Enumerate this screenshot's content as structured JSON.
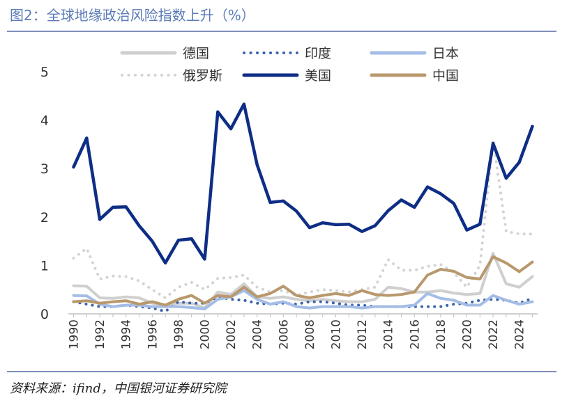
{
  "header": {
    "title": "图2：全球地缘政治风险指数上升（%）"
  },
  "footer": {
    "source": "资料来源：ifind，中国银河证券研究院"
  },
  "chart_data": {
    "type": "line",
    "title": "全球地缘政治风险指数上升（%）",
    "xlabel": "",
    "ylabel": "",
    "ylim": [
      0,
      5
    ],
    "yticks": [
      "0",
      "1",
      "2",
      "3",
      "4",
      "5"
    ],
    "x": [
      1990,
      1991,
      1992,
      1993,
      1994,
      1995,
      1996,
      1997,
      1998,
      1999,
      2000,
      2001,
      2002,
      2003,
      2004,
      2005,
      2006,
      2007,
      2008,
      2009,
      2010,
      2011,
      2012,
      2013,
      2014,
      2015,
      2016,
      2017,
      2018,
      2019,
      2020,
      2021,
      2022,
      2023,
      2024,
      2025
    ],
    "xtick_labels": [
      "1990",
      "1992",
      "1994",
      "1996",
      "1998",
      "2000",
      "2002",
      "2004",
      "2006",
      "2008",
      "2010",
      "2012",
      "2014",
      "2016",
      "2018",
      "2020",
      "2022",
      "2024"
    ],
    "series": [
      {
        "name": "德国",
        "color": "#cfcfcf",
        "style": "solid",
        "values": [
          0.58,
          0.57,
          0.33,
          0.32,
          0.35,
          0.33,
          0.22,
          0.18,
          0.22,
          0.22,
          0.12,
          0.45,
          0.4,
          0.62,
          0.35,
          0.32,
          0.35,
          0.3,
          0.27,
          0.3,
          0.27,
          0.25,
          0.25,
          0.3,
          0.55,
          0.52,
          0.45,
          0.45,
          0.48,
          0.43,
          0.4,
          0.42,
          1.25,
          0.62,
          0.55,
          0.77
        ]
      },
      {
        "name": "印度",
        "color": "#3b63ad",
        "style": "dotted",
        "values": [
          0.25,
          0.2,
          0.15,
          0.15,
          0.18,
          0.15,
          0.12,
          0.05,
          0.25,
          0.22,
          0.22,
          0.35,
          0.3,
          0.28,
          0.22,
          0.2,
          0.22,
          0.2,
          0.25,
          0.25,
          0.22,
          0.18,
          0.18,
          0.15,
          0.15,
          0.15,
          0.15,
          0.15,
          0.15,
          0.2,
          0.22,
          0.28,
          0.3,
          0.28,
          0.22,
          0.32
        ]
      },
      {
        "name": "日本",
        "color": "#a4bde6",
        "style": "solid",
        "values": [
          0.38,
          0.37,
          0.2,
          0.15,
          0.18,
          0.18,
          0.15,
          0.15,
          0.15,
          0.13,
          0.1,
          0.3,
          0.35,
          0.48,
          0.3,
          0.2,
          0.25,
          0.15,
          0.12,
          0.15,
          0.15,
          0.15,
          0.12,
          0.15,
          0.15,
          0.15,
          0.18,
          0.42,
          0.32,
          0.28,
          0.18,
          0.18,
          0.38,
          0.28,
          0.2,
          0.25
        ]
      },
      {
        "name": "俄罗斯",
        "color": "#d3d3d3",
        "style": "dotted",
        "values": [
          1.15,
          1.35,
          0.72,
          0.78,
          0.77,
          0.68,
          0.5,
          0.33,
          0.55,
          0.65,
          0.5,
          0.73,
          0.75,
          0.8,
          0.55,
          0.45,
          0.48,
          0.38,
          0.45,
          0.5,
          0.48,
          0.45,
          0.5,
          0.55,
          1.12,
          0.9,
          0.9,
          0.98,
          1.02,
          0.85,
          0.55,
          1.0,
          3.6,
          1.7,
          1.65,
          1.65
        ]
      },
      {
        "name": "美国",
        "color": "#0e2d85",
        "style": "solid",
        "values": [
          3.03,
          3.63,
          1.95,
          2.2,
          2.21,
          1.82,
          1.5,
          1.05,
          1.52,
          1.55,
          1.13,
          4.17,
          3.82,
          4.33,
          3.08,
          2.3,
          2.33,
          2.12,
          1.78,
          1.88,
          1.84,
          1.85,
          1.7,
          1.82,
          2.13,
          2.35,
          2.2,
          2.62,
          2.48,
          2.28,
          1.73,
          1.85,
          3.52,
          2.8,
          3.13,
          3.87
        ]
      },
      {
        "name": "中国",
        "color": "#b8986c",
        "style": "solid",
        "values": [
          0.25,
          0.27,
          0.22,
          0.25,
          0.27,
          0.2,
          0.25,
          0.18,
          0.3,
          0.38,
          0.22,
          0.38,
          0.35,
          0.55,
          0.35,
          0.42,
          0.57,
          0.38,
          0.33,
          0.38,
          0.42,
          0.38,
          0.48,
          0.4,
          0.38,
          0.4,
          0.45,
          0.8,
          0.92,
          0.88,
          0.75,
          0.72,
          1.18,
          1.05,
          0.87,
          1.07
        ]
      }
    ],
    "legend_position": "top"
  }
}
